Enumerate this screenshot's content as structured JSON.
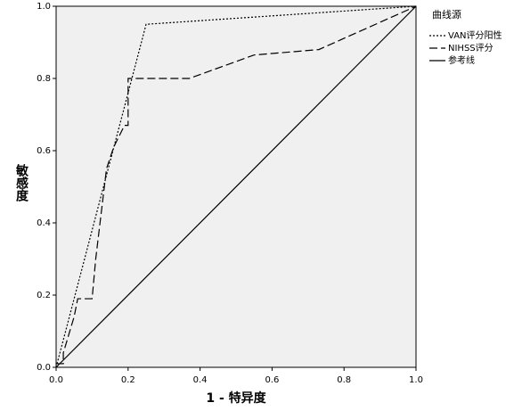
{
  "chart_data": {
    "type": "line",
    "xlabel": "1 - 特异度",
    "ylabel": "敏感度",
    "legend_title": "曲线源",
    "legend": "right",
    "xlim": [
      0,
      1
    ],
    "ylim": [
      0,
      1
    ],
    "xticks": [
      {
        "value": 0,
        "label": "0.0"
      },
      {
        "value": 0.2,
        "label": "0.2"
      },
      {
        "value": 0.4,
        "label": "0.4"
      },
      {
        "value": 0.6,
        "label": "0.6"
      },
      {
        "value": 0.8,
        "label": "0.8"
      },
      {
        "value": 1,
        "label": "1.0"
      }
    ],
    "yticks": [
      {
        "value": 0,
        "label": "0.0"
      },
      {
        "value": 0.2,
        "label": "0.2"
      },
      {
        "value": 0.4,
        "label": "0.4"
      },
      {
        "value": 0.6,
        "label": "0.6"
      },
      {
        "value": 0.8,
        "label": "0.8"
      },
      {
        "value": 1,
        "label": "1.0"
      }
    ],
    "background": "#f0f0f0",
    "series": [
      {
        "name": "VAN评分阳性",
        "color": "#000000",
        "dash": "dotted",
        "x": [
          0,
          0.25,
          1
        ],
        "values": [
          0,
          0.95,
          1
        ]
      },
      {
        "name": "NIHSS评分",
        "color": "#000000",
        "dash": "dashed",
        "x": [
          0,
          0.02,
          0.02,
          0.05,
          0.06,
          0.1,
          0.11,
          0.14,
          0.16,
          0.19,
          0.2,
          0.2,
          0.37,
          0.55,
          0.73,
          1
        ],
        "values": [
          0.01,
          0.01,
          0.04,
          0.14,
          0.19,
          0.19,
          0.3,
          0.55,
          0.61,
          0.67,
          0.67,
          0.8,
          0.8,
          0.865,
          0.88,
          1
        ]
      },
      {
        "name": "参考线",
        "color": "#000000",
        "dash": "solid",
        "x": [
          0,
          1
        ],
        "values": [
          0,
          1
        ]
      }
    ]
  }
}
